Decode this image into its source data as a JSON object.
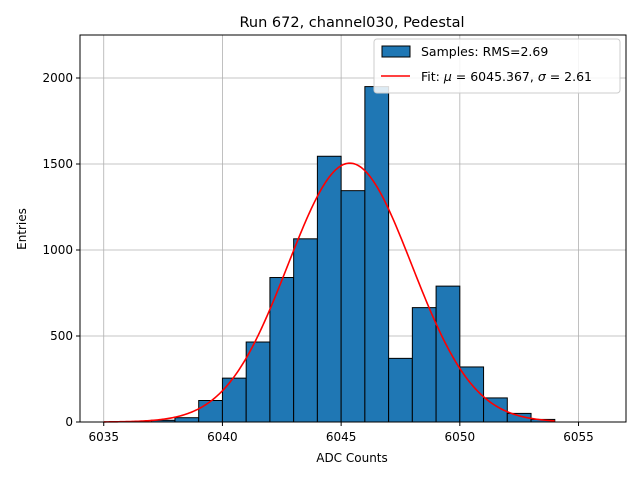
{
  "chart_data": {
    "type": "bar",
    "title": "Run 672, channel030, Pedestal",
    "xlabel": "ADC Counts",
    "ylabel": "Entries",
    "xlim": [
      6034.0,
      6057.0
    ],
    "ylim": [
      0,
      2250
    ],
    "x_ticks": [
      6035,
      6040,
      6045,
      6050,
      6055
    ],
    "y_ticks": [
      0,
      500,
      1000,
      1500,
      2000
    ],
    "grid": true,
    "legend_position": "top-right",
    "bin_width": 1,
    "bins": [
      {
        "x0": 6037,
        "x1": 6038,
        "value": 10
      },
      {
        "x0": 6038,
        "x1": 6039,
        "value": 25
      },
      {
        "x0": 6039,
        "x1": 6040,
        "value": 125
      },
      {
        "x0": 6040,
        "x1": 6041,
        "value": 255
      },
      {
        "x0": 6041,
        "x1": 6042,
        "value": 465
      },
      {
        "x0": 6042,
        "x1": 6043,
        "value": 840
      },
      {
        "x0": 6043,
        "x1": 6044,
        "value": 1065
      },
      {
        "x0": 6044,
        "x1": 6045,
        "value": 1545
      },
      {
        "x0": 6045,
        "x1": 6046,
        "value": 1345
      },
      {
        "x0": 6046,
        "x1": 6047,
        "value": 1950
      },
      {
        "x0": 6047,
        "x1": 6048,
        "value": 370
      },
      {
        "x0": 6048,
        "x1": 6049,
        "value": 665
      },
      {
        "x0": 6049,
        "x1": 6050,
        "value": 790
      },
      {
        "x0": 6050,
        "x1": 6051,
        "value": 320
      },
      {
        "x0": 6051,
        "x1": 6052,
        "value": 140
      },
      {
        "x0": 6052,
        "x1": 6053,
        "value": 50
      },
      {
        "x0": 6053,
        "x1": 6054,
        "value": 15
      }
    ],
    "fit": {
      "mu": 6045.367,
      "sigma": 2.61,
      "amplitude": 1505,
      "x_range": [
        6035,
        6054
      ]
    },
    "legend": [
      {
        "label": "Samples: RMS=2.69",
        "kind": "bar"
      },
      {
        "label_prefix": "Fit: ",
        "mu_symbol": "μ",
        "mu_text": " = 6045.367, ",
        "sigma_symbol": "σ",
        "sigma_text": " = 2.61",
        "kind": "line"
      }
    ],
    "colors": {
      "bar_fill": "#1f77b4",
      "bar_edge": "#000000",
      "fit_line": "#ff0000",
      "grid": "#b0b0b0"
    }
  }
}
